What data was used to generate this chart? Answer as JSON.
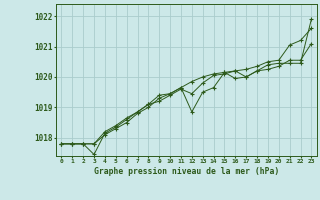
{
  "title": "Graphe pression niveau de la mer (hPa)",
  "bg_color": "#cce8e8",
  "grid_color": "#aacccc",
  "line_color": "#2d5a1b",
  "x_labels": [
    "0",
    "1",
    "2",
    "3",
    "4",
    "5",
    "6",
    "7",
    "8",
    "9",
    "10",
    "11",
    "12",
    "13",
    "14",
    "15",
    "16",
    "17",
    "18",
    "19",
    "20",
    "21",
    "22",
    "23"
  ],
  "ylim": [
    1017.4,
    1022.4
  ],
  "yticks": [
    1018,
    1019,
    1020,
    1021,
    1022
  ],
  "series1": [
    1017.8,
    1017.8,
    1017.8,
    1017.8,
    1018.1,
    1018.3,
    1018.5,
    1018.8,
    1019.0,
    1019.3,
    1019.45,
    1019.65,
    1019.85,
    1020.0,
    1020.1,
    1020.15,
    1019.95,
    1020.0,
    1020.2,
    1020.25,
    1020.35,
    1020.55,
    1020.55,
    1021.1
  ],
  "series2": [
    1017.8,
    1017.8,
    1017.8,
    1017.45,
    1018.15,
    1018.35,
    1018.6,
    1018.85,
    1019.1,
    1019.4,
    1019.45,
    1019.65,
    1018.85,
    1019.5,
    1019.65,
    1020.15,
    1020.2,
    1020.0,
    1020.2,
    1020.4,
    1020.45,
    1020.45,
    1020.45,
    1021.9
  ],
  "series3": [
    1017.8,
    1017.8,
    1017.8,
    1017.8,
    1018.2,
    1018.4,
    1018.65,
    1018.85,
    1019.1,
    1019.2,
    1019.4,
    1019.6,
    1019.45,
    1019.8,
    1020.05,
    1020.1,
    1020.2,
    1020.25,
    1020.35,
    1020.5,
    1020.55,
    1021.05,
    1021.2,
    1021.6
  ]
}
